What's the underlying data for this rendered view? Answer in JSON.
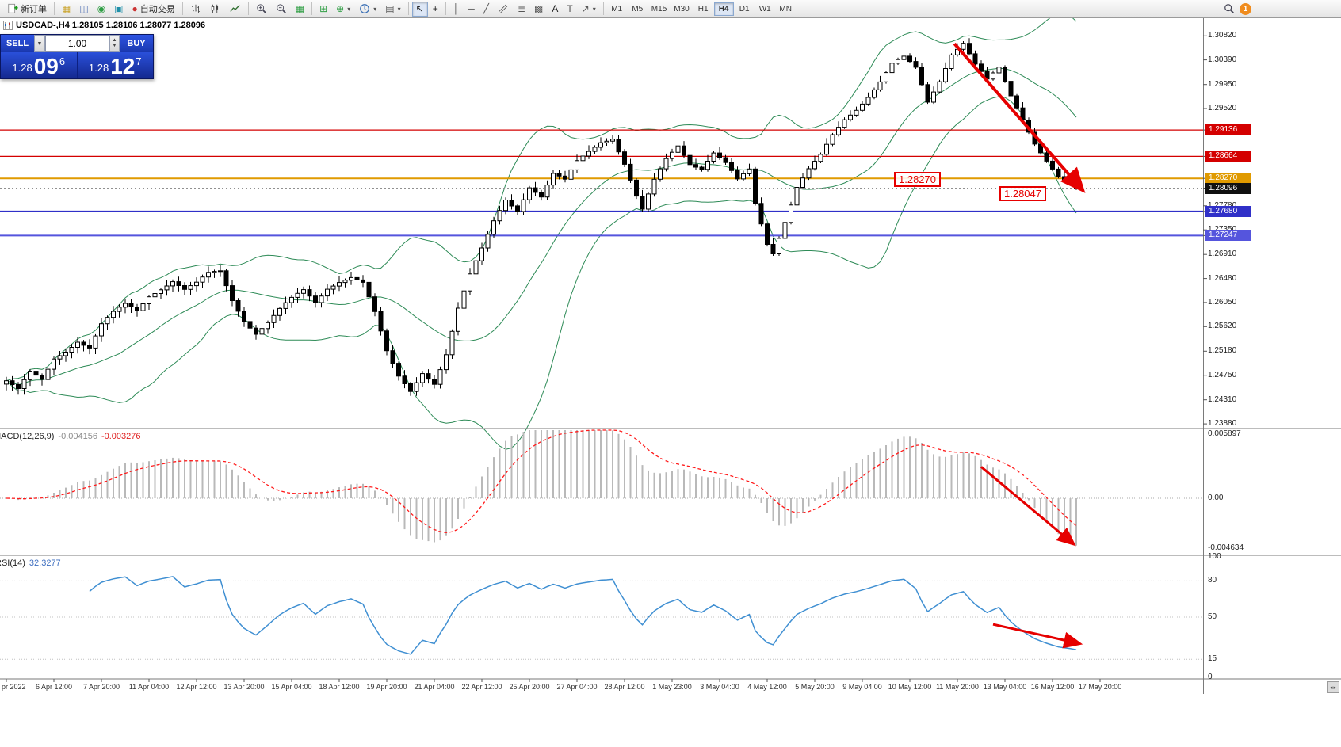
{
  "toolbar": {
    "new_order_label": "新订单",
    "auto_trading_label": "自动交易",
    "icons": {
      "market_watch": "▦",
      "data_window": "◫",
      "navigator": "◉",
      "terminal": "▣",
      "tile_windows": "▦",
      "indicator_list": "⊞",
      "add_indicator": "⊕",
      "template": "▤",
      "cursor": "↖",
      "crosshair": "+",
      "vline": "│",
      "hline": "─",
      "trendline": "╱",
      "fibonacci": "≣",
      "grid": "▩",
      "text": "A",
      "label": "T",
      "arrows": "↗",
      "caret": "▾"
    },
    "timeframes": [
      "M1",
      "M5",
      "M15",
      "M30",
      "H1",
      "H4",
      "D1",
      "W1",
      "MN"
    ],
    "active_timeframe": "H4",
    "notification_badge": "1"
  },
  "chart_header": {
    "text": "USDCAD-,H4 1.28105 1.28106 1.28077 1.28096"
  },
  "trade_panel": {
    "sell_label": "SELL",
    "buy_label": "BUY",
    "volume": "1.00",
    "sell_price_prefix": "1.28",
    "sell_price_big": "09",
    "sell_price_sup": "6",
    "buy_price_prefix": "1.28",
    "buy_price_big": "12",
    "buy_price_sup": "7"
  },
  "annotations": {
    "level_label": "1.28270",
    "low_label": "1.28047"
  },
  "price_axis": {
    "labels": [
      "1.30820",
      "1.30390",
      "1.29950",
      "1.29520",
      "1.27780",
      "1.27350",
      "1.26910",
      "1.26480",
      "1.26050",
      "1.25620",
      "1.25180",
      "1.24750",
      "1.24310",
      "1.23880"
    ],
    "tags": [
      {
        "value": "1.29136",
        "color": "#d40000"
      },
      {
        "value": "1.28664",
        "color": "#d40000"
      },
      {
        "value": "1.28270",
        "color": "#e09a00"
      },
      {
        "value": "1.28096",
        "color": "#101010"
      },
      {
        "value": "1.27680",
        "color": "#3030c8"
      },
      {
        "value": "1.27247",
        "color": "#5555dd"
      }
    ]
  },
  "time_axis": [
    "pr 2022",
    "6 Apr 12:00",
    "7 Apr 20:00",
    "11 Apr 04:00",
    "12 Apr 12:00",
    "13 Apr 20:00",
    "15 Apr 04:00",
    "18 Apr 12:00",
    "19 Apr 20:00",
    "21 Apr 04:00",
    "22 Apr 12:00",
    "25 Apr 20:00",
    "27 Apr 04:00",
    "28 Apr 12:00",
    "1 May 23:00",
    "3 May 04:00",
    "4 May 12:00",
    "5 May 20:00",
    "9 May 04:00",
    "10 May 12:00",
    "11 May 20:00",
    "13 May 04:00",
    "16 May 12:00",
    "17 May 20:00"
  ],
  "macd_panel": {
    "name": "MACD(12,26,9)",
    "main_value": "-0.004156",
    "signal_value": "-0.003276",
    "axis": [
      "0.005897",
      "0.00",
      "-0.004634"
    ]
  },
  "rsi_panel": {
    "name": "RSI(14)",
    "value": "32.3277",
    "axis": [
      "100",
      "80",
      "50",
      "15",
      "0"
    ],
    "levels": [
      80,
      50,
      15
    ]
  },
  "chart_data": {
    "type": "candlestick",
    "symbol": "USDCAD-",
    "timeframe": "H4",
    "ohlc_current": {
      "open": 1.28105,
      "high": 1.28106,
      "low": 1.28077,
      "close": 1.28096
    },
    "price_range": [
      1.2381,
      1.3115
    ],
    "num_bars": 181,
    "noise": 0.00042,
    "close_anchors": [
      [
        0,
        1.2465
      ],
      [
        2,
        1.2448
      ],
      [
        4,
        1.2478
      ],
      [
        6,
        1.2465
      ],
      [
        8,
        1.2505
      ],
      [
        10,
        1.252
      ],
      [
        12,
        1.2538
      ],
      [
        14,
        1.2525
      ],
      [
        16,
        1.2565
      ],
      [
        18,
        1.2585
      ],
      [
        20,
        1.26
      ],
      [
        22,
        1.259
      ],
      [
        24,
        1.2618
      ],
      [
        26,
        1.2632
      ],
      [
        28,
        1.2645
      ],
      [
        30,
        1.2628
      ],
      [
        32,
        1.2638
      ],
      [
        34,
        1.2655
      ],
      [
        36,
        1.266
      ],
      [
        38,
        1.261
      ],
      [
        40,
        1.2575
      ],
      [
        42,
        1.2552
      ],
      [
        44,
        1.257
      ],
      [
        46,
        1.2592
      ],
      [
        48,
        1.261
      ],
      [
        50,
        1.2625
      ],
      [
        52,
        1.2605
      ],
      [
        54,
        1.2632
      ],
      [
        56,
        1.2645
      ],
      [
        58,
        1.2652
      ],
      [
        60,
        1.264
      ],
      [
        62,
        1.2585
      ],
      [
        64,
        1.2515
      ],
      [
        66,
        1.2472
      ],
      [
        68,
        1.2448
      ],
      [
        70,
        1.2482
      ],
      [
        72,
        1.2462
      ],
      [
        74,
        1.2512
      ],
      [
        76,
        1.2592
      ],
      [
        78,
        1.2652
      ],
      [
        80,
        1.27
      ],
      [
        82,
        1.2752
      ],
      [
        84,
        1.2792
      ],
      [
        86,
        1.2772
      ],
      [
        88,
        1.2812
      ],
      [
        90,
        1.2792
      ],
      [
        92,
        1.2832
      ],
      [
        94,
        1.2822
      ],
      [
        96,
        1.2858
      ],
      [
        98,
        1.2878
      ],
      [
        100,
        1.2895
      ],
      [
        102,
        1.29
      ],
      [
        104,
        1.2852
      ],
      [
        106,
        1.2792
      ],
      [
        107,
        1.2768
      ],
      [
        109,
        1.2822
      ],
      [
        111,
        1.2862
      ],
      [
        113,
        1.2888
      ],
      [
        115,
        1.2856
      ],
      [
        117,
        1.2846
      ],
      [
        119,
        1.2872
      ],
      [
        121,
        1.2852
      ],
      [
        123,
        1.2822
      ],
      [
        125,
        1.2842
      ],
      [
        126,
        1.2782
      ],
      [
        128,
        1.2712
      ],
      [
        129,
        1.2696
      ],
      [
        131,
        1.2752
      ],
      [
        133,
        1.2812
      ],
      [
        135,
        1.2842
      ],
      [
        137,
        1.2866
      ],
      [
        139,
        1.2902
      ],
      [
        141,
        1.2932
      ],
      [
        143,
        1.2952
      ],
      [
        145,
        1.2976
      ],
      [
        147,
        1.3002
      ],
      [
        149,
        1.3032
      ],
      [
        151,
        1.3042
      ],
      [
        153,
        1.3022
      ],
      [
        155,
        1.2962
      ],
      [
        157,
        1.3002
      ],
      [
        159,
        1.3052
      ],
      [
        161,
        1.3072
      ],
      [
        163,
        1.3032
      ],
      [
        165,
        1.3002
      ],
      [
        167,
        1.3022
      ],
      [
        169,
        1.2972
      ],
      [
        171,
        1.2932
      ],
      [
        173,
        1.2892
      ],
      [
        175,
        1.2862
      ],
      [
        177,
        1.2832
      ],
      [
        179,
        1.2816
      ],
      [
        180,
        1.28096
      ]
    ],
    "bollinger": {
      "period": 20,
      "deviation": 2,
      "color": "#2e8b57"
    },
    "hlines": [
      {
        "price": 1.29136,
        "color": "#d40000",
        "width": 1.2
      },
      {
        "price": 1.28664,
        "color": "#d40000",
        "width": 1.2
      },
      {
        "price": 1.2827,
        "color": "#e09a00",
        "width": 2
      },
      {
        "price": 1.2768,
        "color": "#3030c8",
        "width": 2
      },
      {
        "price": 1.27247,
        "color": "#5555dd",
        "width": 2
      }
    ],
    "current_price": 1.28096,
    "macd": {
      "fast": 12,
      "slow": 26,
      "signal": 9,
      "histogram_color": "#b9b9b9",
      "signal_color": "#ff1a1a"
    },
    "rsi": {
      "period": 14,
      "color": "#3f8fd2"
    },
    "trend_arrows": [
      {
        "panel": "price",
        "from": [
          159.5,
          1.3068
        ],
        "to": [
          181,
          1.2807
        ]
      },
      {
        "panel": "macd",
        "from": [
          164,
          0.0029
        ],
        "to": [
          179.5,
          -0.0042
        ]
      },
      {
        "panel": "rsi",
        "from": [
          166,
          44
        ],
        "to": [
          180.5,
          28
        ]
      }
    ]
  }
}
